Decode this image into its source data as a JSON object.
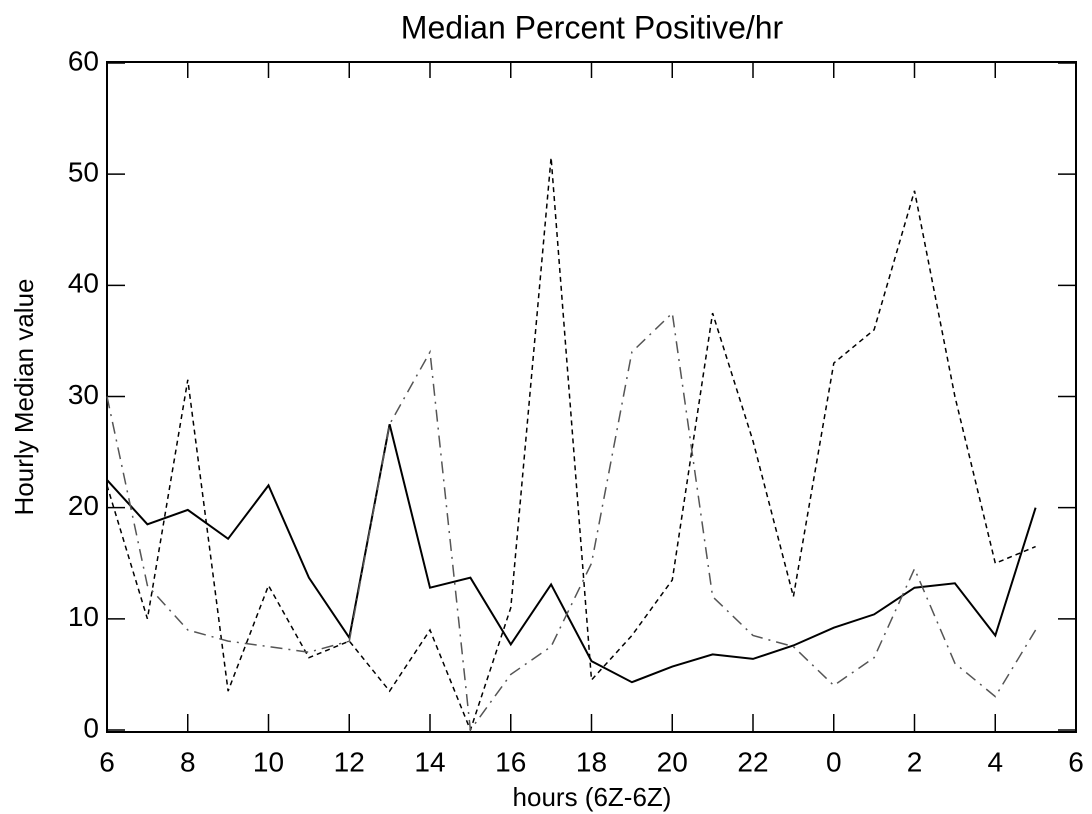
{
  "chart_data": {
    "type": "line",
    "title": "Median Percent Positive/hr",
    "xlabel": "hours (6Z-6Z)",
    "ylabel": "Hourly Median value",
    "x": [
      0,
      1,
      2,
      3,
      4,
      5,
      6,
      7,
      8,
      9,
      10,
      11,
      12,
      13,
      14,
      15,
      16,
      17,
      18,
      19,
      20,
      21,
      22,
      23
    ],
    "series": [
      {
        "color": "#000000",
        "linestyle": "solid",
        "values": [
          22.5,
          18.5,
          19.8,
          17.2,
          22,
          13.7,
          8.3,
          27.5,
          12.8,
          13.7,
          7.7,
          13.1,
          6.2,
          4.3,
          5.7,
          6.8,
          6.4,
          7.6,
          9.2,
          10.4,
          12.8,
          13.2,
          8.5,
          20
        ]
      },
      {
        "color": "#000000",
        "linestyle": "dashed",
        "values": [
          22,
          10,
          31.5,
          3.5,
          13,
          6.5,
          8,
          3.5,
          9,
          0,
          11,
          51.5,
          4.5,
          8.5,
          13.5,
          37.5,
          26,
          12,
          33,
          36,
          48.5,
          30,
          15,
          16.5
        ]
      },
      {
        "color": "#555555",
        "linestyle": "longdash",
        "values": [
          30,
          13,
          9,
          8,
          7.5,
          7,
          8,
          27.5,
          34,
          0,
          5,
          7.5,
          15,
          34,
          37.5,
          12,
          8.5,
          7.5,
          4,
          6.5,
          14.5,
          6,
          3,
          9
        ]
      }
    ],
    "xlim": [
      0,
      24
    ],
    "xticks": [
      {
        "value": 0,
        "label": "6"
      },
      {
        "value": 2,
        "label": "8"
      },
      {
        "value": 4,
        "label": "10"
      },
      {
        "value": 6,
        "label": "12"
      },
      {
        "value": 8,
        "label": "14"
      },
      {
        "value": 10,
        "label": "16"
      },
      {
        "value": 12,
        "label": "18"
      },
      {
        "value": 14,
        "label": "20"
      },
      {
        "value": 16,
        "label": "22"
      },
      {
        "value": 18,
        "label": "0"
      },
      {
        "value": 20,
        "label": "2"
      },
      {
        "value": 22,
        "label": "4"
      },
      {
        "value": 24,
        "label": "6"
      }
    ],
    "ylim": [
      0,
      60
    ],
    "yticks": [
      0,
      10,
      20,
      30,
      40,
      50,
      60
    ],
    "grid": false
  }
}
